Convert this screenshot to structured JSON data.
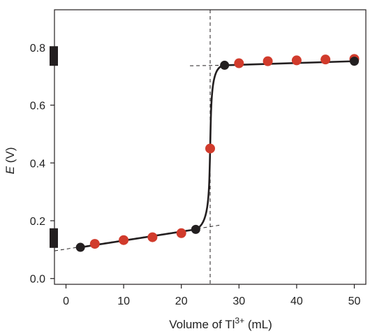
{
  "chart_data": {
    "type": "scatter",
    "xlabel_prefix": "Volume of Tl",
    "xlabel_sup": "3+",
    "xlabel_suffix": " (mL)",
    "ylabel_italic": "E",
    "ylabel_suffix": " (V)",
    "xlim": [
      -2,
      52
    ],
    "ylim": [
      -0.02,
      0.93
    ],
    "x_ticks": [
      0,
      10,
      20,
      30,
      40,
      50
    ],
    "y_ticks": [
      "0.0",
      "0.2",
      "0.4",
      "0.6",
      "0.8"
    ],
    "grid": false,
    "series": [
      {
        "values": [
          {
            "x": 5,
            "y": 0.12
          },
          {
            "x": 10,
            "y": 0.133
          },
          {
            "x": 15,
            "y": 0.143
          },
          {
            "x": 20,
            "y": 0.157
          },
          {
            "x": 25,
            "y": 0.45
          },
          {
            "x": 30,
            "y": 0.745
          },
          {
            "x": 35,
            "y": 0.752
          },
          {
            "x": 40,
            "y": 0.755
          },
          {
            "x": 45,
            "y": 0.758
          },
          {
            "x": 50,
            "y": 0.76
          }
        ],
        "color": "#d13b2c"
      },
      {
        "values": [
          {
            "x": 2.5,
            "y": 0.108
          },
          {
            "x": 22.5,
            "y": 0.17
          },
          {
            "x": 27.5,
            "y": 0.738
          },
          {
            "x": 50,
            "y": 0.752
          }
        ],
        "color": "#231f20"
      }
    ],
    "equivalence_volume": 25,
    "pre_equivalence_line": {
      "x": [
        -2,
        27
      ],
      "y": [
        0.0958,
        0.1857
      ]
    },
    "post_equivalence_line": {
      "x": [
        21.5,
        27.5
      ],
      "y": [
        0.7362,
        0.738
      ]
    },
    "y_axis_markers": [
      0.14,
      0.77
    ],
    "curve_color": "#231f20"
  }
}
